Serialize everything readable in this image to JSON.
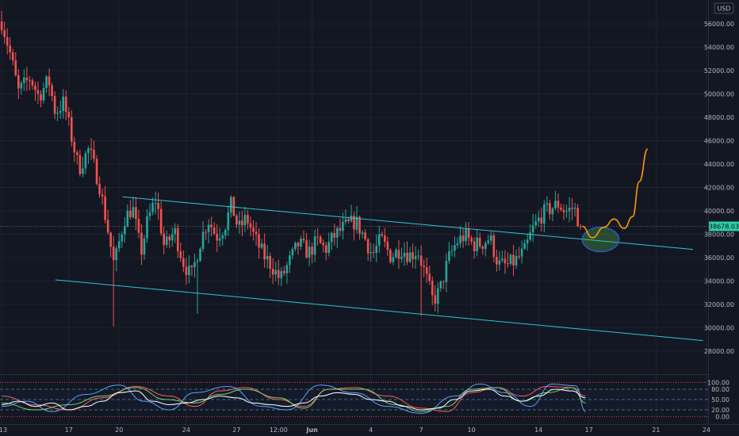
{
  "currency_label": "USD",
  "last_price_label": "38678.03",
  "chart_data": [
    {
      "type": "candlestick",
      "price_axis": {
        "ylim": [
          26500,
          57500
        ],
        "ticks": [
          28000,
          30000,
          32000,
          34000,
          36000,
          38000,
          40000,
          42000,
          44000,
          46000,
          48000,
          50000,
          52000,
          54000,
          56000
        ],
        "tick_labels": [
          "28000.00",
          "30000.00",
          "32000.00",
          "34000.00",
          "36000.00",
          "38000.00",
          "40000.00",
          "42000.00",
          "44000.00",
          "46000.00",
          "48000.00",
          "50000.00",
          "52000.00",
          "54000.00",
          "56000.00"
        ]
      },
      "time_axis": {
        "tick_labels": [
          "13",
          "17",
          "20",
          "24",
          "27",
          "12:00",
          "Jun",
          "4",
          "7",
          "10",
          "14",
          "17",
          "21",
          "24"
        ],
        "tick_days": [
          0,
          4,
          7,
          11,
          14,
          16.5,
          18.5,
          22,
          25,
          28,
          32,
          35,
          39,
          42
        ],
        "xlim": [
          -0.1,
          42.1
        ]
      },
      "last_price": 38678.03,
      "ohlc_anchors": [
        [
          0,
          56200
        ],
        [
          0.5,
          53500
        ],
        [
          1,
          50200
        ],
        [
          1.7,
          51400
        ],
        [
          2.2,
          49800
        ],
        [
          2.8,
          51200
        ],
        [
          3.2,
          48400
        ],
        [
          3.7,
          49300
        ],
        [
          4.1,
          46700
        ],
        [
          4.6,
          43600
        ],
        [
          5.2,
          45300
        ],
        [
          5.8,
          42400
        ],
        [
          6.3,
          38600
        ],
        [
          6.7,
          35300
        ],
        [
          7.3,
          39300
        ],
        [
          7.8,
          40300
        ],
        [
          8.3,
          36400
        ],
        [
          8.7,
          39200
        ],
        [
          9.2,
          41100
        ],
        [
          9.7,
          36800
        ],
        [
          10.3,
          38300
        ],
        [
          10.8,
          35700
        ],
        [
          11.3,
          34300
        ],
        [
          11.8,
          37200
        ],
        [
          12.3,
          39300
        ],
        [
          12.8,
          37800
        ],
        [
          13.3,
          38700
        ],
        [
          13.7,
          40600
        ],
        [
          14.1,
          38400
        ],
        [
          14.6,
          39400
        ],
        [
          15.1,
          37600
        ],
        [
          15.6,
          36200
        ],
        [
          16.1,
          35300
        ],
        [
          16.6,
          34100
        ],
        [
          17.2,
          35800
        ],
        [
          17.7,
          37200
        ],
        [
          18.3,
          36400
        ],
        [
          18.8,
          37400
        ],
        [
          19.3,
          36700
        ],
        [
          19.8,
          37800
        ],
        [
          20.4,
          38600
        ],
        [
          21.1,
          39100
        ],
        [
          21.6,
          37800
        ],
        [
          22.1,
          36200
        ],
        [
          22.6,
          37600
        ],
        [
          23.2,
          36100
        ],
        [
          23.8,
          36800
        ],
        [
          24.3,
          36200
        ],
        [
          24.8,
          36600
        ],
        [
          25.3,
          34300
        ],
        [
          25.7,
          32300
        ],
        [
          26.1,
          33100
        ],
        [
          26.6,
          35800
        ],
        [
          27.1,
          37300
        ],
        [
          27.6,
          37900
        ],
        [
          28.1,
          37100
        ],
        [
          28.6,
          37200
        ],
        [
          29.1,
          37700
        ],
        [
          29.6,
          35400
        ],
        [
          30.1,
          35300
        ],
        [
          30.6,
          35700
        ],
        [
          31.2,
          36600
        ],
        [
          31.6,
          38300
        ],
        [
          32.2,
          39700
        ],
        [
          32.7,
          40200
        ],
        [
          33.2,
          40600
        ],
        [
          33.6,
          39900
        ],
        [
          34.1,
          40300
        ],
        [
          34.4,
          39100
        ],
        [
          34.6,
          38678
        ]
      ],
      "channel": {
        "upper": {
          "from": [
            7.2,
            41200
          ],
          "to": [
            41.2,
            36700
          ]
        },
        "lower": {
          "from": [
            3.2,
            34100
          ],
          "to": [
            41.8,
            28900
          ]
        }
      },
      "projection_path": [
        [
          34.6,
          38678
        ],
        [
          35.2,
          37700
        ],
        [
          35.9,
          38600
        ],
        [
          36.5,
          39300
        ],
        [
          37.1,
          38500
        ],
        [
          37.6,
          39500
        ],
        [
          38.0,
          42500
        ],
        [
          38.5,
          45300
        ]
      ],
      "highlight_zone": {
        "center": [
          35.7,
          37550
        ],
        "rx_days": 1.1,
        "ry_price": 1050
      }
    },
    {
      "type": "oscillator",
      "ylim": [
        -10,
        110
      ],
      "ticks": [
        0,
        20,
        50,
        80,
        100
      ],
      "tick_labels": [
        "0.00",
        "20.00",
        "50.00",
        "80.00",
        "100.00"
      ],
      "levels": [
        0,
        20,
        50,
        80,
        100
      ],
      "series": [
        {
          "color": "#ff5a5a",
          "anchors": [
            [
              0,
              60
            ],
            [
              2,
              35
            ],
            [
              4,
              20
            ],
            [
              6,
              55
            ],
            [
              8,
              88
            ],
            [
              10,
              60
            ],
            [
              11.5,
              30
            ],
            [
              13,
              75
            ],
            [
              14.5,
              85
            ],
            [
              16.5,
              50
            ],
            [
              18,
              30
            ],
            [
              19.5,
              80
            ],
            [
              21,
              85
            ],
            [
              23,
              60
            ],
            [
              25,
              25
            ],
            [
              26.5,
              15
            ],
            [
              28,
              70
            ],
            [
              29.5,
              85
            ],
            [
              31,
              60
            ],
            [
              32.5,
              88
            ],
            [
              34,
              85
            ],
            [
              34.8,
              60
            ]
          ]
        },
        {
          "color": "#5aa0ff",
          "anchors": [
            [
              0,
              30
            ],
            [
              1.5,
              45
            ],
            [
              3,
              15
            ],
            [
              5,
              65
            ],
            [
              7,
              92
            ],
            [
              8.5,
              45
            ],
            [
              10,
              20
            ],
            [
              11.5,
              70
            ],
            [
              13.5,
              88
            ],
            [
              15.5,
              30
            ],
            [
              17,
              20
            ],
            [
              19,
              92
            ],
            [
              21,
              70
            ],
            [
              23,
              30
            ],
            [
              25,
              10
            ],
            [
              27,
              60
            ],
            [
              28.5,
              95
            ],
            [
              30,
              70
            ],
            [
              31.5,
              30
            ],
            [
              32.8,
              95
            ],
            [
              34.2,
              90
            ],
            [
              34.8,
              15
            ]
          ]
        },
        {
          "color": "#78d36b",
          "anchors": [
            [
              0,
              40
            ],
            [
              2,
              20
            ],
            [
              4,
              35
            ],
            [
              6,
              60
            ],
            [
              8,
              85
            ],
            [
              9.8,
              50
            ],
            [
              11.5,
              40
            ],
            [
              13,
              65
            ],
            [
              14.5,
              80
            ],
            [
              16.5,
              55
            ],
            [
              18,
              25
            ],
            [
              19.5,
              80
            ],
            [
              21.5,
              80
            ],
            [
              23.5,
              35
            ],
            [
              25,
              15
            ],
            [
              26.5,
              30
            ],
            [
              28,
              80
            ],
            [
              29.5,
              85
            ],
            [
              31,
              45
            ],
            [
              32.5,
              70
            ],
            [
              34,
              85
            ],
            [
              34.8,
              40
            ]
          ]
        },
        {
          "color": "#ffffff",
          "anchors": [
            [
              0,
              35
            ],
            [
              1,
              45
            ],
            [
              2,
              30
            ],
            [
              3,
              40
            ],
            [
              4,
              20
            ],
            [
              5,
              30
            ],
            [
              6,
              45
            ],
            [
              7,
              70
            ],
            [
              8,
              75
            ],
            [
              9,
              45
            ],
            [
              10,
              35
            ],
            [
              11,
              40
            ],
            [
              12,
              50
            ],
            [
              13,
              60
            ],
            [
              14,
              55
            ],
            [
              15,
              40
            ],
            [
              16,
              35
            ],
            [
              17,
              30
            ],
            [
              18,
              40
            ],
            [
              19,
              60
            ],
            [
              20,
              70
            ],
            [
              21,
              65
            ],
            [
              22,
              50
            ],
            [
              23,
              45
            ],
            [
              24,
              30
            ],
            [
              25,
              20
            ],
            [
              26,
              25
            ],
            [
              27,
              50
            ],
            [
              28,
              75
            ],
            [
              29,
              80
            ],
            [
              30,
              60
            ],
            [
              31,
              45
            ],
            [
              32,
              60
            ],
            [
              33,
              80
            ],
            [
              34,
              75
            ],
            [
              34.8,
              55
            ]
          ]
        }
      ]
    }
  ]
}
